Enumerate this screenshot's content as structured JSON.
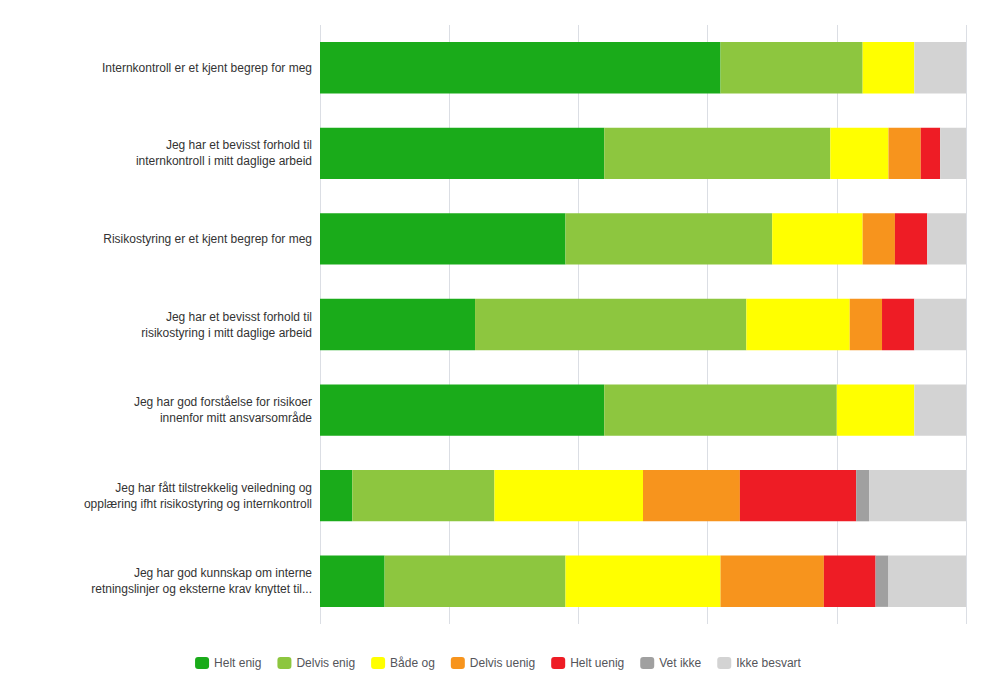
{
  "chart_data": {
    "type": "bar",
    "orientation": "horizontal",
    "stacked": true,
    "categories": [
      "Internkontroll er et kjent begrep for meg",
      "Jeg har et bevisst forhold til\ninternkontroll i mitt daglige arbeid",
      "Risikostyring er et kjent begrep for meg",
      "Jeg har et bevisst forhold til\nrisikostyring i mitt daglige arbeid",
      "Jeg har god forståelse for risikoer\ninnenfor mitt ansvarsområde",
      "Jeg har fått tilstrekkelig veiledning og\nopplæring ifht risikostyring og internkontroll",
      "Jeg har god kunnskap om interne\nretningslinjer og eksterne krav knyttet til..."
    ],
    "series": [
      {
        "name": "Helt enig",
        "color": "#1aab1a",
        "values": [
          62,
          44,
          38,
          24,
          44,
          5,
          10
        ]
      },
      {
        "name": "Delvis enig",
        "color": "#8dc63f",
        "values": [
          22,
          35,
          32,
          42,
          36,
          22,
          28
        ]
      },
      {
        "name": "Både og",
        "color": "#ffff00",
        "values": [
          8,
          9,
          14,
          16,
          12,
          23,
          24
        ]
      },
      {
        "name": "Delvis uenig",
        "color": "#f7941d",
        "values": [
          0,
          5,
          5,
          5,
          0,
          15,
          16
        ]
      },
      {
        "name": "Helt uenig",
        "color": "#ee1c25",
        "values": [
          0,
          3,
          5,
          5,
          0,
          18,
          8
        ]
      },
      {
        "name": "Vet ikke",
        "color": "#a0a0a0",
        "values": [
          0,
          0,
          0,
          0,
          0,
          2,
          2
        ]
      },
      {
        "name": "Ikke besvart",
        "color": "#d3d3d3",
        "values": [
          8,
          4,
          6,
          8,
          8,
          15,
          12
        ]
      }
    ],
    "xlim": [
      0,
      100
    ],
    "xticks": [
      0,
      20,
      40,
      60,
      80,
      100
    ],
    "grid": true,
    "legend": "bottom",
    "tick_labels": "y"
  }
}
